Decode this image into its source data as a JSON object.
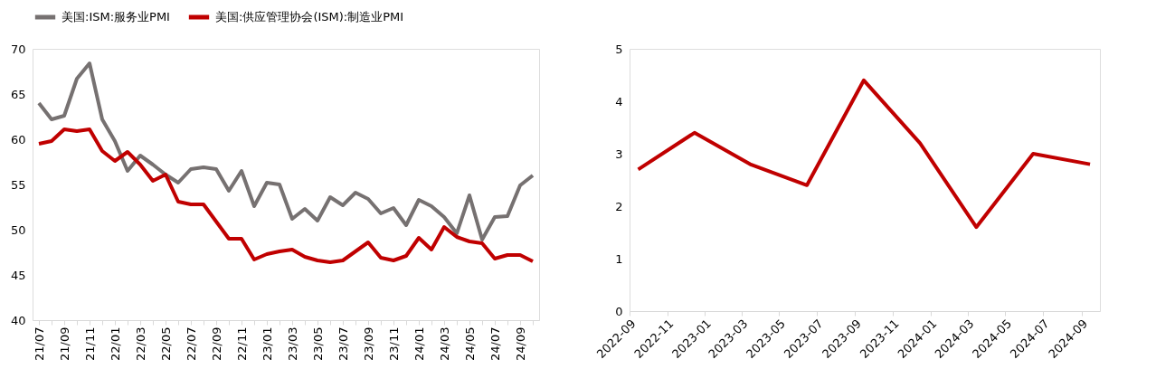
{
  "chart_data": [
    {
      "type": "line",
      "legend": "top",
      "grid": false,
      "ylim": [
        40,
        70
      ],
      "yticks": [
        40,
        45,
        50,
        55,
        60,
        65,
        70
      ],
      "categories": [
        "21/07",
        null,
        "21/09",
        null,
        "21/11",
        null,
        "22/01",
        null,
        "22/03",
        null,
        "22/05",
        null,
        "22/07",
        null,
        "22/09",
        null,
        "22/11",
        null,
        "23/01",
        null,
        "23/03",
        null,
        "23/05",
        null,
        "23/07",
        null,
        "23/09",
        null,
        "23/11",
        null,
        "24/01",
        null,
        "24/03",
        null,
        "24/05",
        null,
        "24/07",
        null,
        "24/09",
        null
      ],
      "series": [
        {
          "name": "美国:ISM:服务业PMI",
          "color": "#767171",
          "values": [
            64.0,
            62.2,
            62.6,
            66.7,
            68.4,
            62.2,
            59.8,
            56.5,
            58.2,
            57.2,
            56.1,
            55.2,
            56.7,
            56.9,
            56.7,
            54.3,
            56.5,
            52.6,
            55.2,
            55.0,
            51.2,
            52.3,
            51.0,
            53.6,
            52.7,
            54.1,
            53.4,
            51.8,
            52.4,
            50.5,
            53.3,
            52.6,
            51.4,
            49.6,
            53.8,
            48.9,
            51.4,
            51.5,
            54.9,
            56.0
          ]
        },
        {
          "name": "美国:供应管理协会(ISM):制造业PMI",
          "color": "#c00000",
          "values": [
            59.5,
            59.8,
            61.1,
            60.9,
            61.1,
            58.7,
            57.6,
            58.6,
            57.2,
            55.4,
            56.1,
            53.1,
            52.8,
            52.8,
            50.9,
            49.0,
            49.0,
            46.7,
            47.3,
            47.6,
            47.8,
            47.0,
            46.6,
            46.4,
            46.6,
            47.6,
            48.6,
            46.9,
            46.6,
            47.1,
            49.1,
            47.8,
            50.3,
            49.2,
            48.7,
            48.5,
            46.8,
            47.2,
            47.2,
            46.5
          ]
        }
      ]
    },
    {
      "type": "line",
      "grid": false,
      "color": "#c00000",
      "ylim": [
        0,
        5
      ],
      "yticks": [
        0,
        1,
        2,
        3,
        4,
        5
      ],
      "xlim": [
        "2022-09",
        "2024-10"
      ],
      "xticks": [
        "2022-09",
        "2022-11",
        "2023-01",
        "2023-03",
        "2023-05",
        "2023-07",
        "2023-09",
        "2023-11",
        "2024-01",
        "2024-03",
        "2024-05",
        "2024-07",
        "2024-09"
      ],
      "x": [
        "2022-09-15",
        "2022-12-15",
        "2023-03-15",
        "2023-06-15",
        "2023-09-15",
        "2023-12-15",
        "2024-03-15",
        "2024-06-15",
        "2024-09-15"
      ],
      "values": [
        2.7,
        3.4,
        2.8,
        2.4,
        4.4,
        3.2,
        1.6,
        3.0,
        2.8
      ]
    }
  ]
}
